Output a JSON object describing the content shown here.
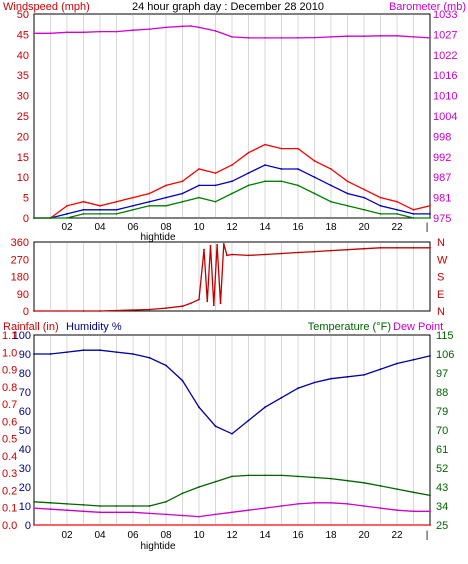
{
  "title": "24 hour graph day : December 28 2010",
  "x_ticks": [
    "02",
    "04",
    "06",
    "08",
    "10",
    "12",
    "14",
    "16",
    "18",
    "20",
    "22"
  ],
  "tide_label": "hightide",
  "colors": {
    "wind": "#ff0000",
    "avg_wind": "#0000c0",
    "gust": "#008000",
    "baro": "#d000d0",
    "dir": "#c00000",
    "humidity": "#0000a0",
    "temperature": "#006400",
    "dewpoint": "#cc00cc",
    "rain": "#ff0000",
    "left_axis_text": "#cc0000",
    "hum_label": "#000080",
    "temp_label": "#006400",
    "right_axis_text": "#cc00cc",
    "temp_axis_text": "#006400",
    "frame": "#000000",
    "grid": "#d8d8d8"
  },
  "chart_data": [
    {
      "type": "line",
      "xlabel": "",
      "x_range": [
        0,
        24
      ],
      "left_axis": {
        "label": "Windspeed (mph)",
        "ticks": [
          "0",
          "5",
          "10",
          "15",
          "20",
          "25",
          "30",
          "35",
          "40",
          "45",
          "50"
        ],
        "ylim": [
          0,
          50
        ]
      },
      "right_axis": {
        "label": "Barometer (mb)",
        "ticks": [
          "975",
          "981",
          "987",
          "992",
          "998",
          "1004",
          "1010",
          "1016",
          "1022",
          "1027",
          "1033"
        ],
        "ylim": [
          975,
          1033
        ]
      },
      "series": [
        {
          "color_key": "baro",
          "axis": "right",
          "x": [
            0,
            1,
            2,
            3,
            4,
            5,
            6,
            7,
            8,
            9,
            9.5,
            10,
            11,
            12,
            13,
            14,
            15,
            16,
            17,
            18,
            19,
            20,
            21,
            22,
            23,
            24
          ],
          "y": [
            1027.5,
            1027.5,
            1027.8,
            1027.8,
            1028,
            1028,
            1028.4,
            1028.7,
            1029.2,
            1029.5,
            1029.6,
            1029.2,
            1028.2,
            1026.5,
            1026.2,
            1026.2,
            1026.2,
            1026.2,
            1026.3,
            1026.5,
            1026.7,
            1026.7,
            1026.8,
            1026.8,
            1026.5,
            1026.2
          ]
        },
        {
          "color_key": "wind",
          "axis": "left",
          "x": [
            0,
            1,
            2,
            3,
            4,
            5,
            6,
            7,
            8,
            9,
            10,
            11,
            12,
            13,
            14,
            15,
            16,
            17,
            18,
            19,
            20,
            21,
            22,
            23,
            24
          ],
          "y": [
            0,
            0,
            3,
            4,
            3,
            4,
            5,
            6,
            8,
            9,
            12,
            11,
            13,
            16,
            18,
            17,
            17,
            14,
            12,
            9,
            7,
            5,
            4,
            2,
            3
          ]
        },
        {
          "color_key": "avg_wind",
          "axis": "left",
          "x": [
            0,
            1,
            2,
            3,
            4,
            5,
            6,
            7,
            8,
            9,
            10,
            11,
            12,
            13,
            14,
            15,
            16,
            17,
            18,
            19,
            20,
            21,
            22,
            23,
            24
          ],
          "y": [
            0,
            0,
            1,
            2,
            2,
            2,
            3,
            4,
            5,
            6,
            8,
            8,
            9,
            11,
            13,
            12,
            12,
            10,
            8,
            6,
            5,
            3,
            2,
            1,
            1
          ]
        },
        {
          "color_key": "gust",
          "axis": "left",
          "x": [
            0,
            1,
            2,
            3,
            4,
            5,
            6,
            7,
            8,
            9,
            10,
            11,
            12,
            13,
            14,
            15,
            16,
            17,
            18,
            19,
            20,
            21,
            22,
            23,
            24
          ],
          "y": [
            0,
            0,
            0,
            1,
            1,
            1,
            2,
            3,
            3,
            4,
            5,
            4,
            6,
            8,
            9,
            9,
            8,
            6,
            4,
            3,
            2,
            1,
            1,
            0,
            0
          ]
        }
      ]
    },
    {
      "type": "line",
      "x_range": [
        0,
        24
      ],
      "left_axis": {
        "ticks": [
          "0",
          "90",
          "180",
          "270",
          "360"
        ],
        "ylim": [
          0,
          360
        ]
      },
      "right_axis": {
        "ticks": [
          "N",
          "E",
          "S",
          "W",
          "N"
        ]
      },
      "series": [
        {
          "color_key": "dir",
          "axis": "left",
          "x": [
            0,
            3,
            4,
            6,
            7,
            8,
            9,
            9.5,
            10,
            10.3,
            10.5,
            10.7,
            10.9,
            11.1,
            11.3,
            11.5,
            11.7,
            12,
            13,
            14,
            15,
            16,
            17,
            18,
            19,
            20,
            21,
            22,
            23,
            24
          ],
          "y": [
            0,
            0,
            0,
            5,
            8,
            15,
            25,
            40,
            60,
            320,
            50,
            340,
            30,
            345,
            40,
            350,
            290,
            295,
            290,
            295,
            300,
            305,
            310,
            315,
            320,
            325,
            330,
            330,
            330,
            330
          ]
        }
      ]
    },
    {
      "type": "line",
      "x_range": [
        0,
        24
      ],
      "left_axis_outer": {
        "label": "Rainfall (in)",
        "ticks": [
          "0.0",
          "0.1",
          "0.2",
          "0.3",
          "0.4",
          "0.5",
          "0.6",
          "0.7",
          "0.8",
          "0.9",
          "1.0",
          "1.1"
        ],
        "ylim": [
          0,
          1.1
        ]
      },
      "left_axis_inner": {
        "label": "Humidity %",
        "ticks": [
          "0",
          "10",
          "20",
          "30",
          "40",
          "50",
          "60",
          "70",
          "80",
          "90",
          "100"
        ],
        "ylim": [
          0,
          100
        ]
      },
      "right_axis": {
        "label": "Temperature (°F)",
        "label2": "Dew Point",
        "ticks": [
          "25",
          "34",
          "43",
          "52",
          "61",
          "70",
          "79",
          "88",
          "97",
          "106",
          "115"
        ],
        "ylim": [
          25,
          115
        ]
      },
      "series": [
        {
          "color_key": "humidity",
          "axis": "humidity",
          "x": [
            0,
            1,
            2,
            3,
            4,
            5,
            6,
            7,
            8,
            9,
            10,
            11,
            12,
            13,
            14,
            15,
            16,
            17,
            18,
            19,
            20,
            21,
            22,
            23,
            24
          ],
          "y": [
            90,
            90,
            91,
            92,
            92,
            91,
            90,
            88,
            84,
            76,
            62,
            52,
            48,
            55,
            62,
            67,
            72,
            75,
            77,
            78,
            79,
            82,
            85,
            87,
            89
          ]
        },
        {
          "color_key": "temperature",
          "axis": "right",
          "x": [
            0,
            1,
            2,
            3,
            4,
            5,
            6,
            7,
            8,
            9,
            10,
            11,
            12,
            13,
            14,
            15,
            16,
            17,
            18,
            19,
            20,
            21,
            22,
            23,
            24
          ],
          "y": [
            36,
            35.5,
            35,
            34.5,
            34,
            34,
            34,
            34,
            36,
            40,
            43,
            45.5,
            48,
            48.5,
            48.5,
            48.5,
            48,
            47.5,
            47,
            46,
            45,
            43.5,
            42,
            40.5,
            39
          ]
        },
        {
          "color_key": "dewpoint",
          "axis": "right",
          "x": [
            0,
            1,
            2,
            3,
            4,
            5,
            6,
            7,
            8,
            9,
            10,
            11,
            12,
            13,
            14,
            15,
            16,
            17,
            18,
            19,
            20,
            21,
            22,
            23,
            24
          ],
          "y": [
            33,
            32.5,
            32,
            31.5,
            31,
            31,
            31,
            30.5,
            30,
            29.5,
            29,
            30,
            31,
            32,
            33,
            34,
            35,
            35.5,
            35.5,
            35,
            34,
            33,
            32,
            31.5,
            31.5
          ]
        },
        {
          "color_key": "rain",
          "axis": "rain",
          "x": [
            0,
            24
          ],
          "y": [
            0,
            0
          ]
        }
      ]
    }
  ]
}
